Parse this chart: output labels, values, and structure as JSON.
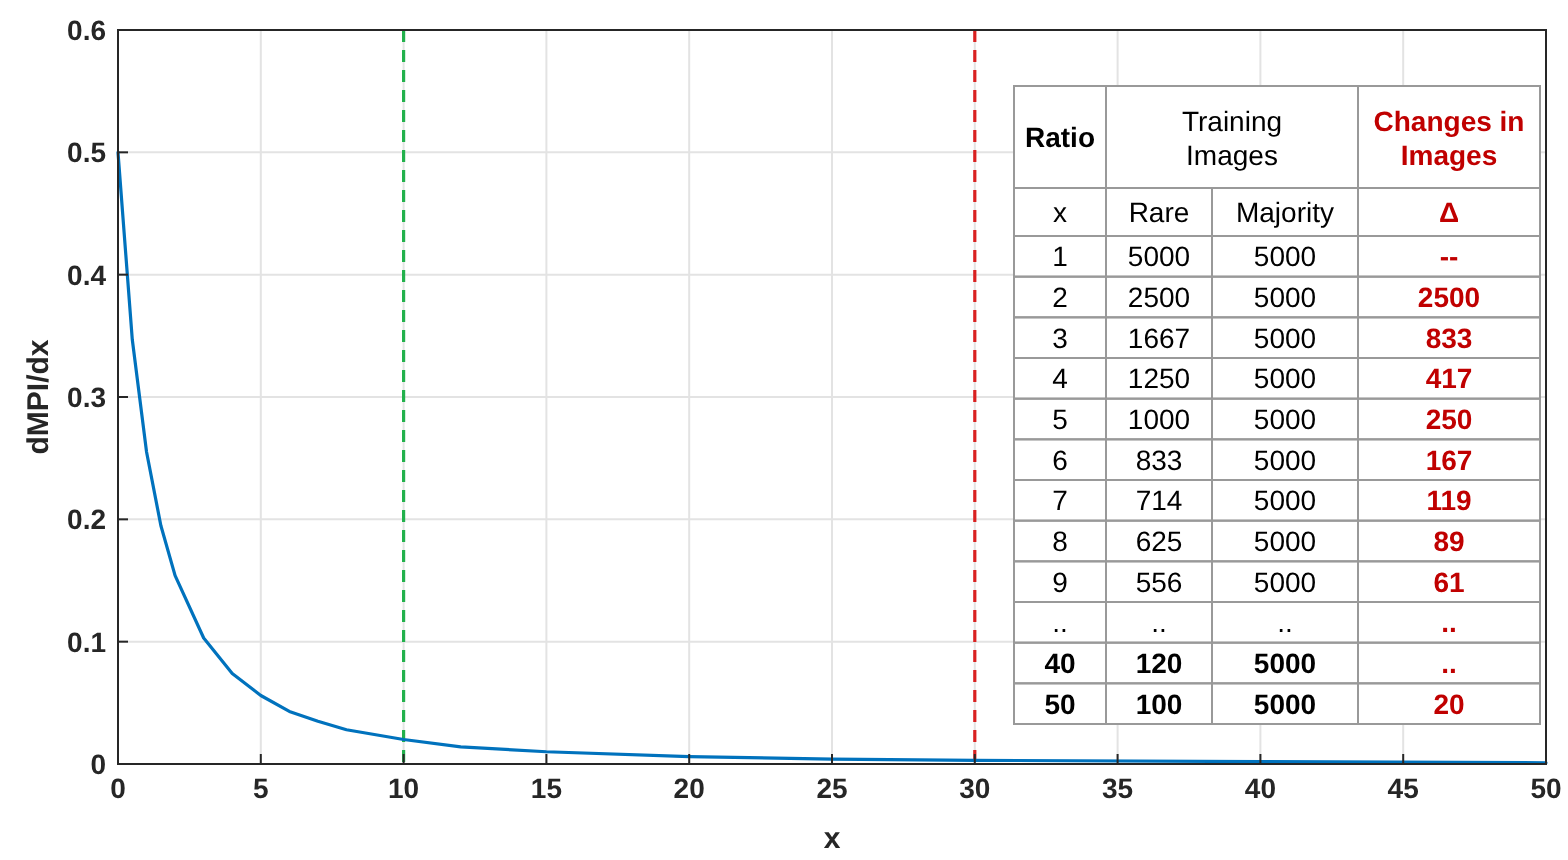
{
  "chart_data": {
    "type": "line",
    "xlabel": "x",
    "ylabel": "dMPI/dx",
    "x": [
      0,
      0.5,
      1,
      1.5,
      2,
      3,
      4,
      5,
      6,
      7,
      8,
      10,
      12,
      15,
      20,
      25,
      30,
      40,
      50
    ],
    "series": [
      {
        "color": "#0072bd",
        "values": [
          0.5,
          0.347,
          0.255,
          0.195,
          0.154,
          0.103,
          0.074,
          0.056,
          0.043,
          0.035,
          0.028,
          0.02,
          0.014,
          0.01,
          0.006,
          0.004,
          0.003,
          0.002,
          0.001
        ]
      }
    ],
    "xlim": [
      0,
      50
    ],
    "ylim": [
      0,
      0.6
    ],
    "xticks": [
      0,
      5,
      10,
      15,
      20,
      25,
      30,
      35,
      40,
      45,
      50
    ],
    "yticks": [
      0,
      0.1,
      0.2,
      0.3,
      0.4,
      0.5,
      0.6
    ],
    "grid": true,
    "marker": "none",
    "line_style": "solid",
    "ref_lines": [
      {
        "axis": "x",
        "value": 10,
        "color": "#22b14c",
        "line_style": "dashed"
      },
      {
        "axis": "x",
        "value": 30,
        "color": "#d92121",
        "line_style": "dashed"
      }
    ],
    "annotations": [
      "Ratio",
      "Training Images",
      "Changes in Images",
      "x",
      "Rare",
      "Majority",
      "Δ",
      "1",
      "5000",
      "5000",
      "--",
      "2",
      "2500",
      "5000",
      "2500",
      "3",
      "1667",
      "5000",
      "833",
      "4",
      "1250",
      "5000",
      "417",
      "5",
      "1000",
      "5000",
      "250",
      "6",
      "833",
      "5000",
      "167",
      "7",
      "714",
      "5000",
      "119",
      "8",
      "625",
      "5000",
      "89",
      "9",
      "556",
      "5000",
      "61",
      "..",
      "..",
      "..",
      "..",
      "40",
      "120",
      "5000",
      "..",
      "50",
      "100",
      "5000",
      "20"
    ]
  }
}
